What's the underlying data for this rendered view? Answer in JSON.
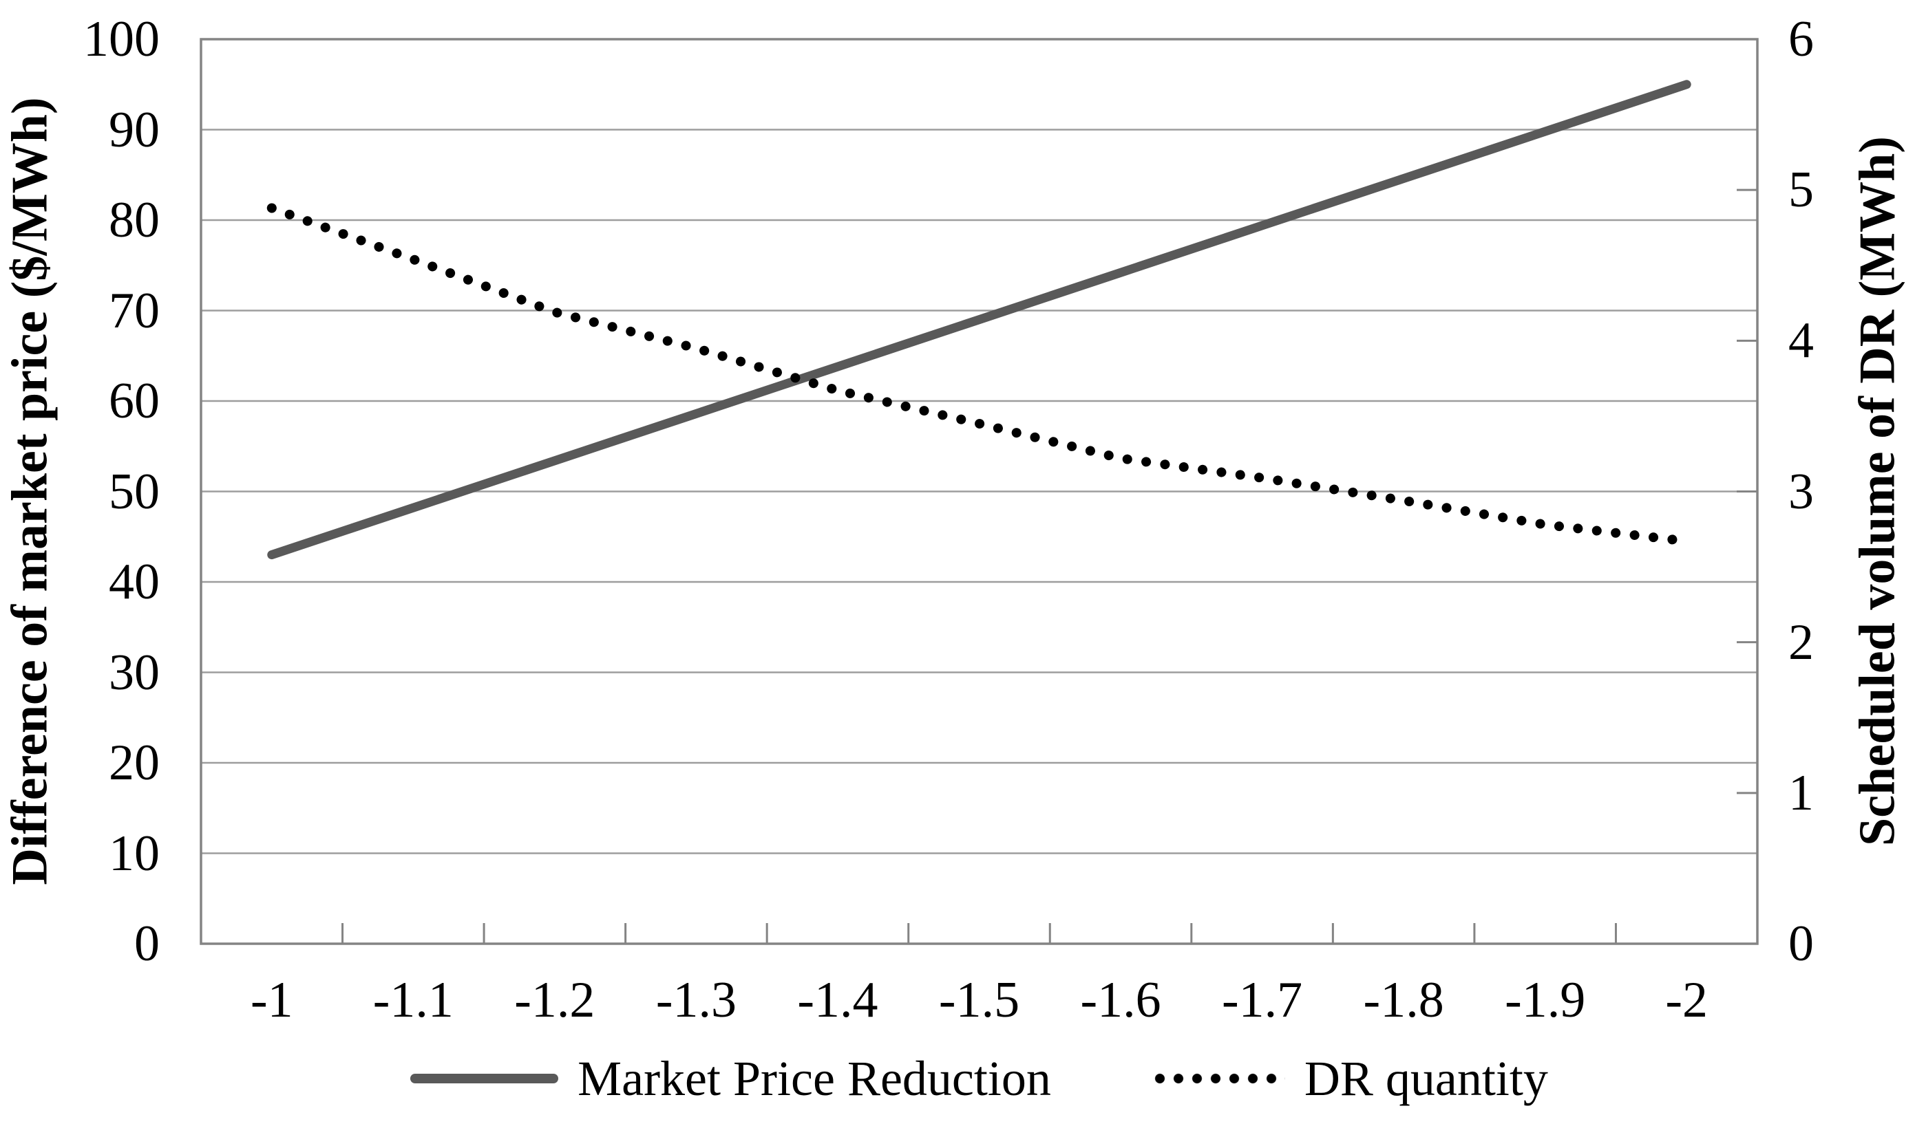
{
  "chart_data": {
    "type": "line",
    "title": "",
    "x_axis": {
      "label": "",
      "categories": [
        "-1",
        "-1.1",
        "-1.2",
        "-1.3",
        "-1.4",
        "-1.5",
        "-1.6",
        "-1.7",
        "-1.8",
        "-1.9",
        "-2"
      ]
    },
    "y_axis_left": {
      "label": "Difference of market price ($/MWh)",
      "min": 0,
      "max": 100,
      "tick_step": 10,
      "tick_labels": [
        "0",
        "10",
        "20",
        "30",
        "40",
        "50",
        "60",
        "70",
        "80",
        "90",
        "100"
      ]
    },
    "y_axis_right": {
      "label": "Scheduled volume of DR (MWh)",
      "min": 0,
      "max": 6,
      "tick_step": 1,
      "tick_labels": [
        "0",
        "1",
        "2",
        "3",
        "4",
        "5",
        "6"
      ]
    },
    "series": [
      {
        "name": "Market Price Reduction",
        "axis": "left",
        "style": "solid",
        "color": "#595959",
        "values": [
          43,
          48.2,
          53.4,
          58.6,
          63.8,
          69,
          74.2,
          79.4,
          84.6,
          89.8,
          95
        ]
      },
      {
        "name": "DR quantity",
        "axis": "right",
        "style": "dotted",
        "color": "#000000",
        "values": [
          4.88,
          4.54,
          4.19,
          3.95,
          3.67,
          3.45,
          3.22,
          3.09,
          2.94,
          2.78,
          2.67
        ]
      }
    ],
    "legend": {
      "position": "bottom"
    },
    "grid": "horizontal",
    "colors": {
      "gridline": "#9d9d9d",
      "axis_border": "#848484",
      "text": "#000000",
      "background": "#ffffff"
    }
  }
}
